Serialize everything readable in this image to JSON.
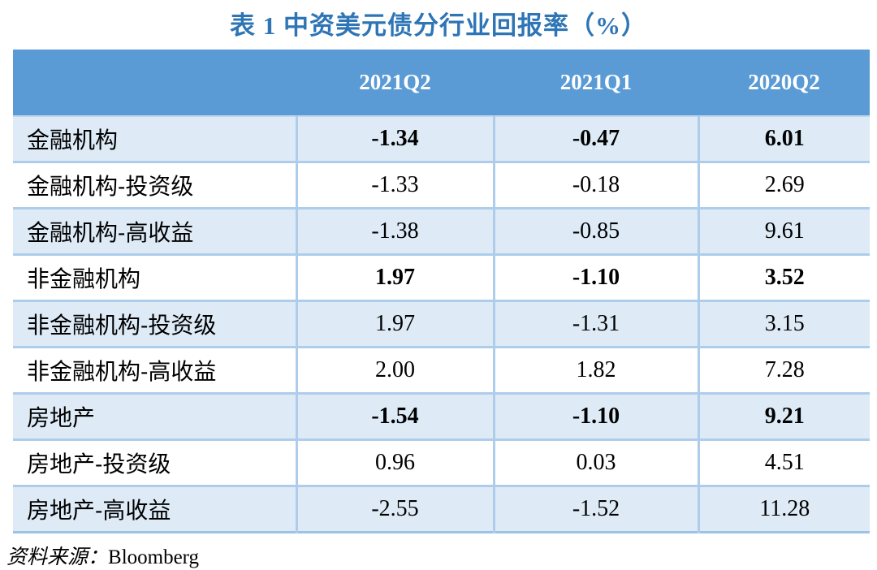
{
  "title": "表 1  中资美元债分行业回报率（%）",
  "table": {
    "columns": [
      "",
      "2021Q2",
      "2021Q1",
      "2020Q2"
    ],
    "rows": [
      {
        "label": "金融机构",
        "values": [
          "-1.34",
          "-0.47",
          "6.01"
        ],
        "emphasis": true
      },
      {
        "label": "金融机构-投资级",
        "values": [
          "-1.33",
          "-0.18",
          "2.69"
        ],
        "emphasis": false
      },
      {
        "label": "金融机构-高收益",
        "values": [
          "-1.38",
          "-0.85",
          "9.61"
        ],
        "emphasis": false
      },
      {
        "label": "非金融机构",
        "values": [
          "1.97",
          "-1.10",
          "3.52"
        ],
        "emphasis": true
      },
      {
        "label": "非金融机构-投资级",
        "values": [
          "1.97",
          "-1.31",
          "3.15"
        ],
        "emphasis": false
      },
      {
        "label": "非金融机构-高收益",
        "values": [
          "2.00",
          "1.82",
          "7.28"
        ],
        "emphasis": false
      },
      {
        "label": "房地产",
        "values": [
          "-1.54",
          "-1.10",
          "9.21"
        ],
        "emphasis": true
      },
      {
        "label": "房地产-投资级",
        "values": [
          "0.96",
          "0.03",
          "4.51"
        ],
        "emphasis": false
      },
      {
        "label": "房地产-高收益",
        "values": [
          "-2.55",
          "-1.52",
          "11.28"
        ],
        "emphasis": false
      }
    ]
  },
  "source": {
    "label": "资料来源：",
    "value": "Bloomberg"
  },
  "colors": {
    "title_blue": "#2E75B6",
    "header_bg": "#5B9BD5",
    "header_text": "#FFFFFF",
    "row_alt_bg": "#DEEBF7",
    "row_bg": "#FFFFFF",
    "grid_border": "#AECDEB",
    "bottom_border": "#9CC3E6"
  },
  "chart_data": {
    "type": "table",
    "title": "表 1 中资美元债分行业回报率（%）",
    "columns": [
      "2021Q2",
      "2021Q1",
      "2020Q2"
    ],
    "rows": [
      {
        "category": "金融机构",
        "values": [
          -1.34,
          -0.47,
          6.01
        ]
      },
      {
        "category": "金融机构-投资级",
        "values": [
          -1.33,
          -0.18,
          2.69
        ]
      },
      {
        "category": "金融机构-高收益",
        "values": [
          -1.38,
          -0.85,
          9.61
        ]
      },
      {
        "category": "非金融机构",
        "values": [
          1.97,
          -1.1,
          3.52
        ]
      },
      {
        "category": "非金融机构-投资级",
        "values": [
          1.97,
          -1.31,
          3.15
        ]
      },
      {
        "category": "非金融机构-高收益",
        "values": [
          2.0,
          1.82,
          7.28
        ]
      },
      {
        "category": "房地产",
        "values": [
          -1.54,
          -1.1,
          9.21
        ]
      },
      {
        "category": "房地产-投资级",
        "values": [
          0.96,
          0.03,
          4.51
        ]
      },
      {
        "category": "房地产-高收益",
        "values": [
          -2.55,
          -1.52,
          11.28
        ]
      }
    ],
    "source": "Bloomberg"
  }
}
